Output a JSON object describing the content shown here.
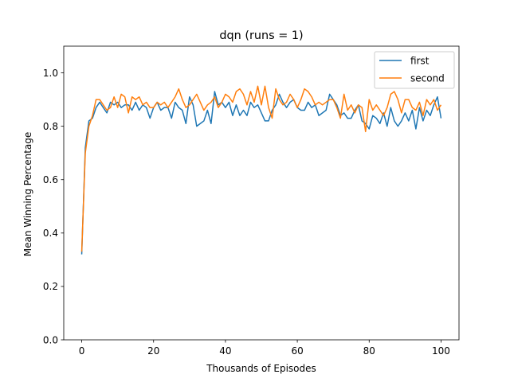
{
  "chart_data": {
    "type": "line",
    "title": "dqn (runs = 1)",
    "xlabel": "Thousands of Episodes",
    "ylabel": "Mean Winning Percentage",
    "xlim": [
      -5,
      105
    ],
    "ylim": [
      0.0,
      1.1
    ],
    "xticks": [
      0,
      20,
      40,
      60,
      80,
      100
    ],
    "yticks": [
      0.0,
      0.2,
      0.4,
      0.6,
      0.8,
      1.0
    ],
    "xtick_labels": [
      "0",
      "20",
      "40",
      "60",
      "80",
      "100"
    ],
    "ytick_labels": [
      "0.0",
      "0.2",
      "0.4",
      "0.6",
      "0.8",
      "1.0"
    ],
    "grid": false,
    "legend_position": "top-right",
    "x": [
      0,
      1,
      2,
      3,
      4,
      5,
      6,
      7,
      8,
      9,
      10,
      11,
      12,
      13,
      14,
      15,
      16,
      17,
      18,
      19,
      20,
      21,
      22,
      23,
      24,
      25,
      26,
      27,
      28,
      29,
      30,
      31,
      32,
      33,
      34,
      35,
      36,
      37,
      38,
      39,
      40,
      41,
      42,
      43,
      44,
      45,
      46,
      47,
      48,
      49,
      50,
      51,
      52,
      53,
      54,
      55,
      56,
      57,
      58,
      59,
      60,
      61,
      62,
      63,
      64,
      65,
      66,
      67,
      68,
      69,
      70,
      71,
      72,
      73,
      74,
      75,
      76,
      77,
      78,
      79,
      80,
      81,
      82,
      83,
      84,
      85,
      86,
      87,
      88,
      89,
      90,
      91,
      92,
      93,
      94,
      95,
      96,
      97,
      98,
      99,
      100
    ],
    "series": [
      {
        "name": "first",
        "color": "#1f77b4",
        "values": [
          0.32,
          0.72,
          0.82,
          0.83,
          0.87,
          0.89,
          0.87,
          0.85,
          0.89,
          0.88,
          0.89,
          0.87,
          0.88,
          0.88,
          0.86,
          0.89,
          0.86,
          0.88,
          0.87,
          0.83,
          0.87,
          0.89,
          0.86,
          0.87,
          0.87,
          0.83,
          0.89,
          0.87,
          0.86,
          0.81,
          0.91,
          0.88,
          0.8,
          0.81,
          0.82,
          0.86,
          0.81,
          0.93,
          0.88,
          0.89,
          0.87,
          0.89,
          0.84,
          0.88,
          0.84,
          0.86,
          0.84,
          0.89,
          0.87,
          0.88,
          0.85,
          0.82,
          0.82,
          0.86,
          0.88,
          0.92,
          0.89,
          0.87,
          0.89,
          0.9,
          0.87,
          0.86,
          0.86,
          0.89,
          0.87,
          0.88,
          0.84,
          0.85,
          0.86,
          0.92,
          0.9,
          0.88,
          0.84,
          0.85,
          0.83,
          0.83,
          0.86,
          0.88,
          0.82,
          0.81,
          0.79,
          0.84,
          0.83,
          0.81,
          0.85,
          0.8,
          0.87,
          0.82,
          0.8,
          0.82,
          0.85,
          0.82,
          0.86,
          0.79,
          0.87,
          0.82,
          0.86,
          0.84,
          0.88,
          0.91,
          0.83
        ]
      },
      {
        "name": "second",
        "color": "#ff7f0e",
        "values": [
          0.33,
          0.7,
          0.8,
          0.84,
          0.9,
          0.9,
          0.88,
          0.86,
          0.87,
          0.91,
          0.87,
          0.92,
          0.91,
          0.85,
          0.91,
          0.9,
          0.91,
          0.88,
          0.89,
          0.87,
          0.87,
          0.89,
          0.88,
          0.89,
          0.87,
          0.89,
          0.91,
          0.94,
          0.9,
          0.87,
          0.88,
          0.9,
          0.92,
          0.89,
          0.86,
          0.88,
          0.89,
          0.91,
          0.87,
          0.89,
          0.92,
          0.91,
          0.89,
          0.93,
          0.94,
          0.92,
          0.88,
          0.93,
          0.89,
          0.95,
          0.88,
          0.95,
          0.87,
          0.83,
          0.94,
          0.9,
          0.88,
          0.89,
          0.92,
          0.9,
          0.87,
          0.9,
          0.94,
          0.93,
          0.91,
          0.88,
          0.89,
          0.88,
          0.89,
          0.9,
          0.9,
          0.87,
          0.83,
          0.92,
          0.86,
          0.88,
          0.85,
          0.88,
          0.87,
          0.78,
          0.9,
          0.86,
          0.88,
          0.86,
          0.84,
          0.87,
          0.92,
          0.93,
          0.9,
          0.85,
          0.9,
          0.9,
          0.87,
          0.86,
          0.89,
          0.84,
          0.9,
          0.88,
          0.9,
          0.86,
          0.88
        ]
      }
    ]
  }
}
